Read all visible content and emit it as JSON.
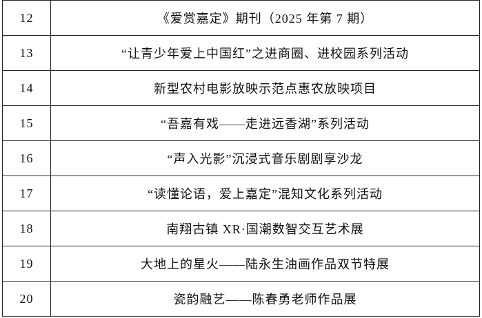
{
  "table": {
    "rows": [
      [
        "12",
        "《爱赏嘉定》期刊（2025 年第 7 期）"
      ],
      [
        "13",
        "“让青少年爱上中国红”之进商圈、进校园系列活动"
      ],
      [
        "14",
        "新型农村电影放映示范点惠农放映项目"
      ],
      [
        "15",
        "“吾嘉有戏——走进远香湖”系列活动"
      ],
      [
        "16",
        "“声入光影”沉浸式音乐剧剧享沙龙"
      ],
      [
        "17",
        "“读懂论语，爱上嘉定”混知文化系列活动"
      ],
      [
        "18",
        "南翔古镇 XR·国潮数智交互艺术展"
      ],
      [
        "19",
        "大地上的星火——陆永生油画作品双节特展"
      ],
      [
        "20",
        "瓷韵融艺——陈春勇老师作品展"
      ]
    ]
  }
}
